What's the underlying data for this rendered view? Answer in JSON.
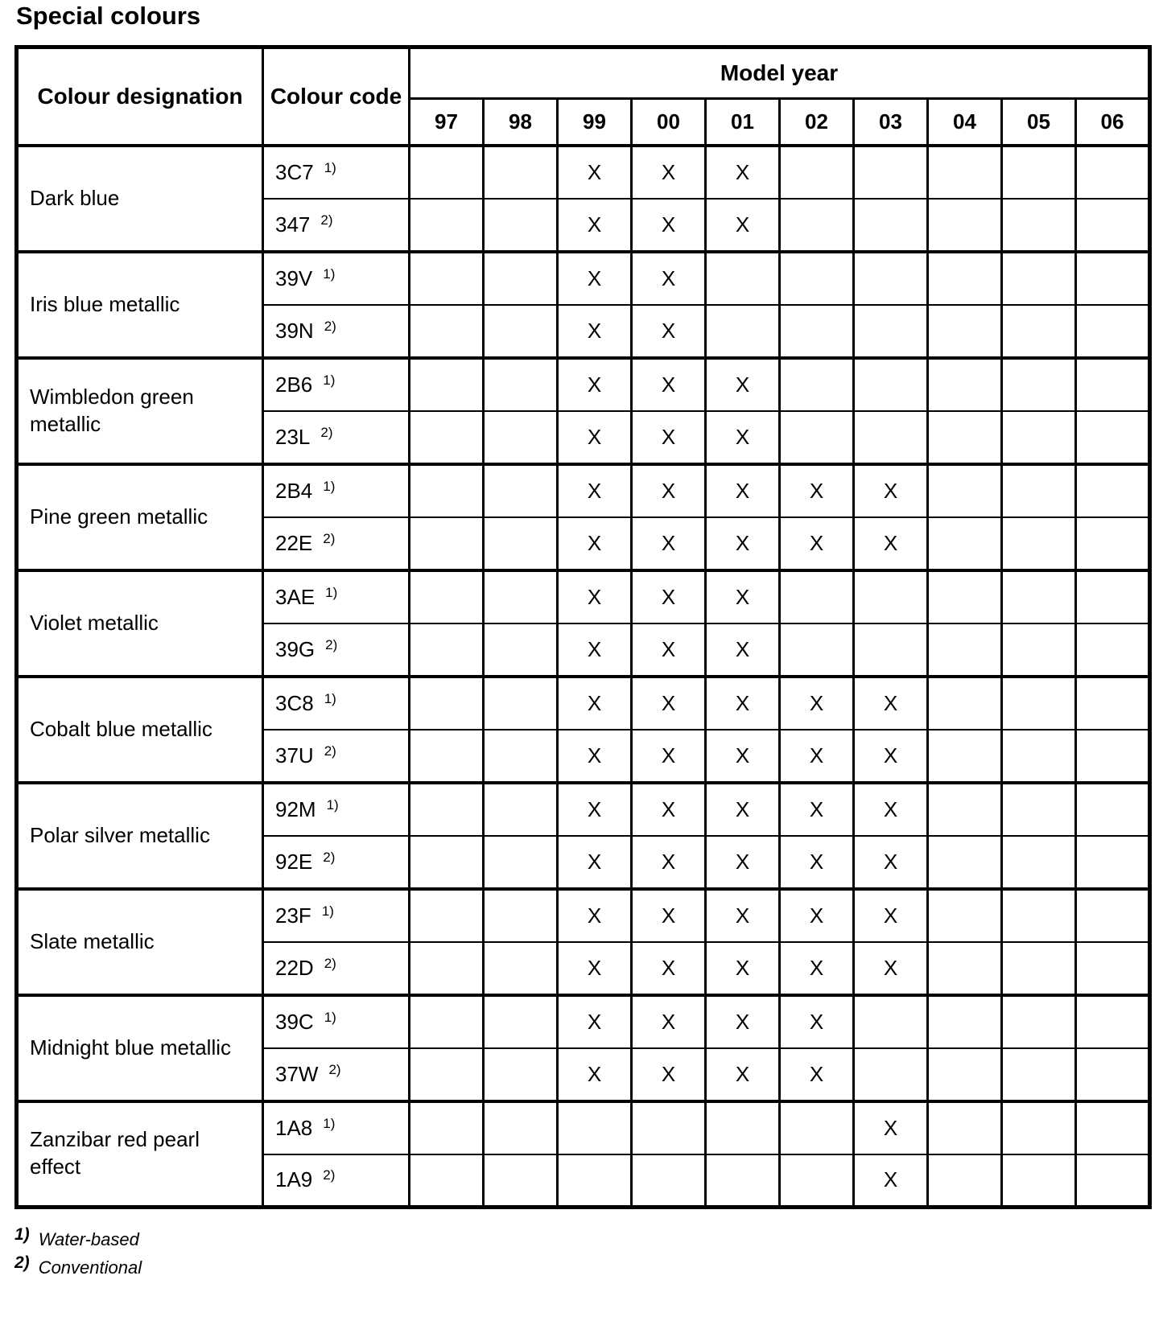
{
  "page_title": "Special colours",
  "table": {
    "headers": {
      "colour_designation": "Colour designation",
      "colour_code": "Colour code",
      "model_year": "Model year",
      "years": [
        "97",
        "98",
        "99",
        "00",
        "01",
        "02",
        "03",
        "04",
        "05",
        "06"
      ]
    },
    "mark": "X",
    "groups": [
      {
        "designation": "Dark blue",
        "rows": [
          {
            "code": "3C7",
            "note": "1)",
            "years": [
              "99",
              "00",
              "01"
            ]
          },
          {
            "code": "347",
            "note": "2)",
            "years": [
              "99",
              "00",
              "01"
            ]
          }
        ]
      },
      {
        "designation": "Iris blue metallic",
        "rows": [
          {
            "code": "39V",
            "note": "1)",
            "years": [
              "99",
              "00"
            ]
          },
          {
            "code": "39N",
            "note": "2)",
            "years": [
              "99",
              "00"
            ]
          }
        ]
      },
      {
        "designation": "Wimbledon green metallic",
        "rows": [
          {
            "code": "2B6",
            "note": "1)",
            "years": [
              "99",
              "00",
              "01"
            ]
          },
          {
            "code": "23L",
            "note": "2)",
            "years": [
              "99",
              "00",
              "01"
            ]
          }
        ]
      },
      {
        "designation": "Pine green metallic",
        "rows": [
          {
            "code": "2B4",
            "note": "1)",
            "years": [
              "99",
              "00",
              "01",
              "02",
              "03"
            ]
          },
          {
            "code": "22E",
            "note": "2)",
            "years": [
              "99",
              "00",
              "01",
              "02",
              "03"
            ]
          }
        ]
      },
      {
        "designation": "Violet metallic",
        "rows": [
          {
            "code": "3AE",
            "note": "1)",
            "years": [
              "99",
              "00",
              "01"
            ]
          },
          {
            "code": "39G",
            "note": "2)",
            "years": [
              "99",
              "00",
              "01"
            ]
          }
        ]
      },
      {
        "designation": "Cobalt blue metallic",
        "rows": [
          {
            "code": "3C8",
            "note": "1)",
            "years": [
              "99",
              "00",
              "01",
              "02",
              "03"
            ]
          },
          {
            "code": "37U",
            "note": "2)",
            "years": [
              "99",
              "00",
              "01",
              "02",
              "03"
            ]
          }
        ]
      },
      {
        "designation": "Polar silver metallic",
        "rows": [
          {
            "code": "92M",
            "note": "1)",
            "years": [
              "99",
              "00",
              "01",
              "02",
              "03"
            ]
          },
          {
            "code": "92E",
            "note": "2)",
            "years": [
              "99",
              "00",
              "01",
              "02",
              "03"
            ]
          }
        ]
      },
      {
        "designation": "Slate metallic",
        "rows": [
          {
            "code": "23F",
            "note": "1)",
            "years": [
              "99",
              "00",
              "01",
              "02",
              "03"
            ]
          },
          {
            "code": "22D",
            "note": "2)",
            "years": [
              "99",
              "00",
              "01",
              "02",
              "03"
            ]
          }
        ]
      },
      {
        "designation": "Midnight blue metallic",
        "rows": [
          {
            "code": "39C",
            "note": "1)",
            "years": [
              "99",
              "00",
              "01",
              "02"
            ]
          },
          {
            "code": "37W",
            "note": "2)",
            "years": [
              "99",
              "00",
              "01",
              "02"
            ]
          }
        ]
      },
      {
        "designation": "Zanzibar red pearl effect",
        "rows": [
          {
            "code": "1A8",
            "note": "1)",
            "years": [
              "03"
            ]
          },
          {
            "code": "1A9",
            "note": "2)",
            "years": [
              "03"
            ]
          }
        ]
      }
    ]
  },
  "footnotes": [
    {
      "marker": "1)",
      "text": "Water-based"
    },
    {
      "marker": "2)",
      "text": "Conventional"
    }
  ],
  "colors": {
    "text": "#000000",
    "border": "#000000",
    "background": "#ffffff"
  }
}
